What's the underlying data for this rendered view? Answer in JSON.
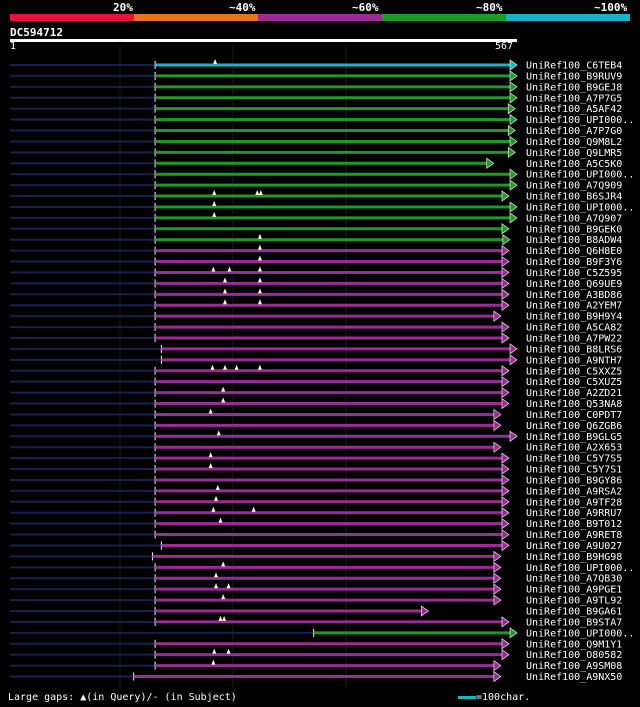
{
  "legend": {
    "labels": [
      "20%",
      "~40%",
      "~60%",
      "~80%",
      "~100%"
    ],
    "colors": [
      "#e5143a",
      "#e6761c",
      "#9b2c97",
      "#1f9a23",
      "#17b5c4"
    ]
  },
  "query": {
    "id": "DC594712",
    "start_label": "1",
    "end_label": "567",
    "length": 567
  },
  "hits": [
    {
      "name": "UniRef100_C6TEB4",
      "start": 163,
      "end": 567,
      "color": "#17b5c4",
      "marks": [
        230
      ]
    },
    {
      "name": "UniRef100_B9RUV9",
      "start": 163,
      "end": 567,
      "color": "#1f9a23",
      "marks": []
    },
    {
      "name": "UniRef100_B9GEJ8",
      "start": 163,
      "end": 567,
      "color": "#1f9a23",
      "marks": []
    },
    {
      "name": "UniRef100_A7P7G5",
      "start": 163,
      "end": 567,
      "color": "#1f9a23",
      "marks": []
    },
    {
      "name": "UniRef100_A5AF42",
      "start": 163,
      "end": 565,
      "color": "#1f9a23",
      "marks": []
    },
    {
      "name": "UniRef100_UPI000..",
      "start": 163,
      "end": 567,
      "color": "#1f9a23",
      "marks": []
    },
    {
      "name": "UniRef100_A7P7G0",
      "start": 163,
      "end": 565,
      "color": "#1f9a23",
      "marks": []
    },
    {
      "name": "UniRef100_Q9M8L2",
      "start": 163,
      "end": 567,
      "color": "#1f9a23",
      "marks": []
    },
    {
      "name": "UniRef100_Q9LMR5",
      "start": 163,
      "end": 565,
      "color": "#1f9a23",
      "marks": []
    },
    {
      "name": "UniRef100_A5C5K0",
      "start": 163,
      "end": 541,
      "color": "#1f9a23",
      "marks": []
    },
    {
      "name": "UniRef100_UPI000..",
      "start": 163,
      "end": 567,
      "color": "#1f9a23",
      "marks": []
    },
    {
      "name": "UniRef100_A7Q909",
      "start": 163,
      "end": 567,
      "color": "#1f9a23",
      "marks": []
    },
    {
      "name": "UniRef100_B6SJR4",
      "start": 163,
      "end": 558,
      "color": "#1f9a23",
      "marks": [
        229,
        277,
        281
      ]
    },
    {
      "name": "UniRef100_UPI000..",
      "start": 163,
      "end": 567,
      "color": "#1f9a23",
      "marks": [
        229
      ]
    },
    {
      "name": "UniRef100_A7Q907",
      "start": 163,
      "end": 567,
      "color": "#1f9a23",
      "marks": [
        229
      ]
    },
    {
      "name": "UniRef100_B9GEK0",
      "start": 163,
      "end": 558,
      "color": "#1f9a23",
      "marks": []
    },
    {
      "name": "UniRef100_B8ADW4",
      "start": 163,
      "end": 559,
      "color": "#1f9a23",
      "marks": [
        280
      ]
    },
    {
      "name": "UniRef100_Q6H8E0",
      "start": 163,
      "end": 558,
      "color": "#9b2c97",
      "marks": [
        280
      ]
    },
    {
      "name": "UniRef100_B9F3Y6",
      "start": 163,
      "end": 558,
      "color": "#9b2c97",
      "marks": [
        280
      ]
    },
    {
      "name": "UniRef100_C5Z595",
      "start": 163,
      "end": 558,
      "color": "#9b2c97",
      "marks": [
        228,
        246,
        280
      ]
    },
    {
      "name": "UniRef100_Q69UE9",
      "start": 163,
      "end": 558,
      "color": "#9b2c97",
      "marks": [
        241,
        280
      ]
    },
    {
      "name": "UniRef100_A3BD86",
      "start": 163,
      "end": 558,
      "color": "#9b2c97",
      "marks": [
        241,
        280
      ]
    },
    {
      "name": "UniRef100_A2YEM7",
      "start": 163,
      "end": 558,
      "color": "#9b2c97",
      "marks": [
        241,
        280
      ]
    },
    {
      "name": "UniRef100_B9H9Y4",
      "start": 163,
      "end": 549,
      "color": "#9b2c97",
      "marks": []
    },
    {
      "name": "UniRef100_A5CA82",
      "start": 163,
      "end": 558,
      "color": "#9b2c97",
      "marks": []
    },
    {
      "name": "UniRef100_A7PW22",
      "start": 163,
      "end": 558,
      "color": "#9b2c97",
      "marks": []
    },
    {
      "name": "UniRef100_B8LRS6",
      "start": 170,
      "end": 567,
      "color": "#9b2c97",
      "marks": []
    },
    {
      "name": "UniRef100_A9NTH7",
      "start": 170,
      "end": 567,
      "color": "#9b2c97",
      "marks": []
    },
    {
      "name": "UniRef100_C5XXZ5",
      "start": 163,
      "end": 558,
      "color": "#9b2c97",
      "marks": [
        227,
        241,
        254,
        280
      ]
    },
    {
      "name": "UniRef100_C5XUZ5",
      "start": 163,
      "end": 558,
      "color": "#9b2c97",
      "marks": []
    },
    {
      "name": "UniRef100_A2ZD21",
      "start": 163,
      "end": 558,
      "color": "#9b2c97",
      "marks": [
        239
      ]
    },
    {
      "name": "UniRef100_Q53NA8",
      "start": 163,
      "end": 558,
      "color": "#9b2c97",
      "marks": [
        239
      ]
    },
    {
      "name": "UniRef100_C0PDT7",
      "start": 163,
      "end": 549,
      "color": "#9b2c97",
      "marks": [
        225
      ]
    },
    {
      "name": "UniRef100_Q6ZGB6",
      "start": 163,
      "end": 549,
      "color": "#9b2c97",
      "marks": []
    },
    {
      "name": "UniRef100_B9GLG5",
      "start": 163,
      "end": 567,
      "color": "#9b2c97",
      "marks": [
        234
      ]
    },
    {
      "name": "UniRef100_A2X653",
      "start": 163,
      "end": 549,
      "color": "#9b2c97",
      "marks": []
    },
    {
      "name": "UniRef100_C5Y7S5",
      "start": 163,
      "end": 558,
      "color": "#9b2c97",
      "marks": [
        225
      ]
    },
    {
      "name": "UniRef100_C5Y7S1",
      "start": 163,
      "end": 558,
      "color": "#9b2c97",
      "marks": [
        225
      ]
    },
    {
      "name": "UniRef100_B9GY86",
      "start": 163,
      "end": 558,
      "color": "#9b2c97",
      "marks": []
    },
    {
      "name": "UniRef100_A9RSA2",
      "start": 163,
      "end": 558,
      "color": "#9b2c97",
      "marks": [
        233
      ]
    },
    {
      "name": "UniRef100_A9TF28",
      "start": 163,
      "end": 558,
      "color": "#9b2c97",
      "marks": [
        231
      ]
    },
    {
      "name": "UniRef100_A9RRU7",
      "start": 163,
      "end": 558,
      "color": "#9b2c97",
      "marks": [
        228,
        273
      ]
    },
    {
      "name": "UniRef100_B9T012",
      "start": 163,
      "end": 558,
      "color": "#9b2c97",
      "marks": [
        236
      ]
    },
    {
      "name": "UniRef100_A9RET8",
      "start": 163,
      "end": 558,
      "color": "#9b2c97",
      "marks": []
    },
    {
      "name": "UniRef100_A9U027",
      "start": 170,
      "end": 558,
      "color": "#9b2c97",
      "marks": []
    },
    {
      "name": "UniRef100_B9HG98",
      "start": 160,
      "end": 549,
      "color": "#9b2c97",
      "marks": []
    },
    {
      "name": "UniRef100_UPI000..",
      "start": 163,
      "end": 549,
      "color": "#9b2c97",
      "marks": [
        239
      ]
    },
    {
      "name": "UniRef100_A7QB30",
      "start": 163,
      "end": 549,
      "color": "#9b2c97",
      "marks": [
        231
      ]
    },
    {
      "name": "UniRef100_A9PGE1",
      "start": 163,
      "end": 549,
      "color": "#9b2c97",
      "marks": [
        231,
        245
      ]
    },
    {
      "name": "UniRef100_A9TL92",
      "start": 163,
      "end": 549,
      "color": "#9b2c97",
      "marks": [
        239
      ]
    },
    {
      "name": "UniRef100_B9GA61",
      "start": 163,
      "end": 468,
      "color": "#9b2c97",
      "marks": []
    },
    {
      "name": "UniRef100_B9STA7",
      "start": 163,
      "end": 558,
      "color": "#9b2c97",
      "marks": [
        236,
        240
      ]
    },
    {
      "name": "UniRef100_UPI000..",
      "start": 340,
      "end": 567,
      "color": "#1f9a23",
      "marks": []
    },
    {
      "name": "UniRef100_Q9M1Y1",
      "start": 163,
      "end": 558,
      "color": "#9b2c97",
      "marks": []
    },
    {
      "name": "UniRef100_O80582",
      "start": 163,
      "end": 558,
      "color": "#9b2c97",
      "marks": [
        229,
        245
      ]
    },
    {
      "name": "UniRef100_A9SM08",
      "start": 163,
      "end": 549,
      "color": "#9b2c97",
      "marks": [
        228
      ]
    },
    {
      "name": "UniRef100_A9NX50",
      "start": 139,
      "end": 549,
      "color": "#9b2c97",
      "marks": []
    }
  ],
  "footer": {
    "text": "Large gaps: ▲(in Query)/- (in Subject)",
    "scale_text": "=100char.",
    "scale_color": "#17b5c4"
  }
}
